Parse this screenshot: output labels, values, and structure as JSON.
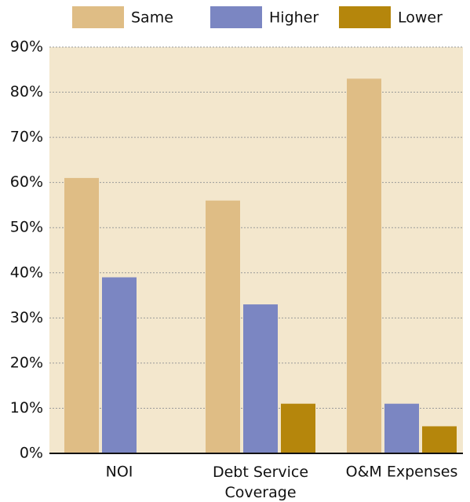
{
  "chart_data": {
    "type": "bar",
    "categories": [
      "NOI",
      "Debt Service Coverage",
      "O&M Expenses"
    ],
    "series": [
      {
        "name": "Same",
        "color": "#dfbd85",
        "values": [
          61,
          56,
          83
        ]
      },
      {
        "name": "Higher",
        "color": "#7b86c2",
        "values": [
          39,
          33,
          11
        ]
      },
      {
        "name": "Lower",
        "color": "#b5860c",
        "values": [
          0,
          11,
          6
        ]
      }
    ],
    "ylim": [
      0,
      90
    ],
    "yticks": [
      {
        "value": 0,
        "label": "0%"
      },
      {
        "value": 10,
        "label": "10%"
      },
      {
        "value": 20,
        "label": "20%"
      },
      {
        "value": 30,
        "label": "30%"
      },
      {
        "value": 40,
        "label": "40%"
      },
      {
        "value": 50,
        "label": "50%"
      },
      {
        "value": 60,
        "label": "60%"
      },
      {
        "value": 70,
        "label": "70%"
      },
      {
        "value": 80,
        "label": "80%"
      },
      {
        "value": 90,
        "label": "90%"
      }
    ],
    "grid": true,
    "legend": "top"
  }
}
